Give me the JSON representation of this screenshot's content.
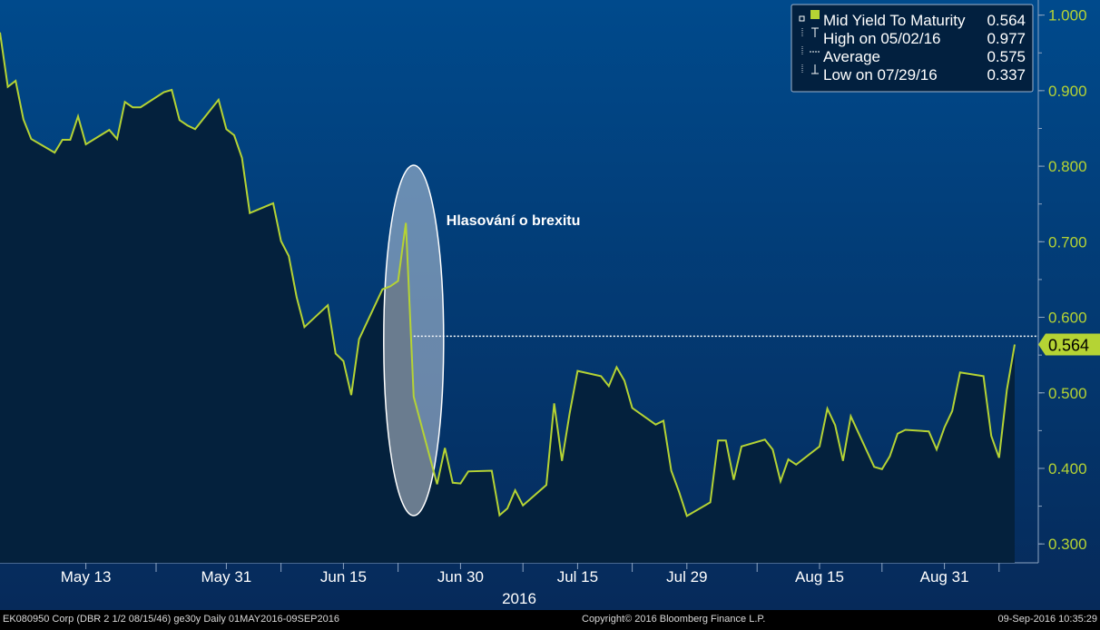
{
  "chart_data": {
    "type": "area",
    "title": "",
    "xlabel": "",
    "ylabel": "",
    "year_label": "2016",
    "x_tick_labels": [
      "May 13",
      "May 31",
      "Jun 15",
      "Jun 30",
      "Jul 15",
      "Jul 29",
      "Aug 15",
      "Aug 31"
    ],
    "y_tick_labels": [
      "1.000",
      "0.900",
      "0.800",
      "0.700",
      "0.600",
      "0.500",
      "0.400",
      "0.300"
    ],
    "ylim": [
      0.275,
      1.02
    ],
    "y_ticks": [
      1.0,
      0.9,
      0.8,
      0.7,
      0.6,
      0.5,
      0.4,
      0.3
    ],
    "grid": false,
    "legend_position": "top-right",
    "series": [
      {
        "name": "Mid Yield To Maturity",
        "color": "#b5d334",
        "x": [
          "2016-05-02",
          "2016-05-03",
          "2016-05-04",
          "2016-05-05",
          "2016-05-06",
          "2016-05-09",
          "2016-05-10",
          "2016-05-11",
          "2016-05-12",
          "2016-05-13",
          "2016-05-16",
          "2016-05-17",
          "2016-05-18",
          "2016-05-19",
          "2016-05-20",
          "2016-05-23",
          "2016-05-24",
          "2016-05-25",
          "2016-05-26",
          "2016-05-27",
          "2016-05-30",
          "2016-05-31",
          "2016-06-01",
          "2016-06-02",
          "2016-06-03",
          "2016-06-06",
          "2016-06-07",
          "2016-06-08",
          "2016-06-09",
          "2016-06-10",
          "2016-06-13",
          "2016-06-14",
          "2016-06-15",
          "2016-06-16",
          "2016-06-17",
          "2016-06-20",
          "2016-06-21",
          "2016-06-22",
          "2016-06-23",
          "2016-06-24",
          "2016-06-27",
          "2016-06-28",
          "2016-06-29",
          "2016-06-30",
          "2016-07-01",
          "2016-07-04",
          "2016-07-05",
          "2016-07-06",
          "2016-07-07",
          "2016-07-08",
          "2016-07-11",
          "2016-07-12",
          "2016-07-13",
          "2016-07-14",
          "2016-07-15",
          "2016-07-18",
          "2016-07-19",
          "2016-07-20",
          "2016-07-21",
          "2016-07-22",
          "2016-07-25",
          "2016-07-26",
          "2016-07-27",
          "2016-07-28",
          "2016-07-29",
          "2016-08-01",
          "2016-08-02",
          "2016-08-03",
          "2016-08-04",
          "2016-08-05",
          "2016-08-08",
          "2016-08-09",
          "2016-08-10",
          "2016-08-11",
          "2016-08-12",
          "2016-08-15",
          "2016-08-16",
          "2016-08-17",
          "2016-08-18",
          "2016-08-19",
          "2016-08-22",
          "2016-08-23",
          "2016-08-24",
          "2016-08-25",
          "2016-08-26",
          "2016-08-29",
          "2016-08-30",
          "2016-08-31",
          "2016-09-01",
          "2016-09-02",
          "2016-09-05",
          "2016-09-06",
          "2016-09-07",
          "2016-09-08",
          "2016-09-09"
        ],
        "y": [
          0.977,
          0.905,
          0.913,
          0.862,
          0.836,
          0.818,
          0.835,
          0.835,
          0.866,
          0.829,
          0.848,
          0.836,
          0.885,
          0.878,
          0.878,
          0.898,
          0.901,
          0.861,
          0.854,
          0.849,
          0.888,
          0.849,
          0.841,
          0.811,
          0.738,
          0.751,
          0.701,
          0.681,
          0.627,
          0.587,
          0.616,
          0.552,
          0.542,
          0.497,
          0.571,
          0.637,
          0.641,
          0.648,
          0.725,
          0.495,
          0.379,
          0.427,
          0.381,
          0.38,
          0.396,
          0.397,
          0.338,
          0.347,
          0.371,
          0.351,
          0.378,
          0.486,
          0.41,
          0.474,
          0.529,
          0.522,
          0.509,
          0.534,
          0.516,
          0.48,
          0.458,
          0.463,
          0.397,
          0.369,
          0.337,
          0.355,
          0.437,
          0.437,
          0.385,
          0.429,
          0.438,
          0.425,
          0.383,
          0.412,
          0.405,
          0.429,
          0.479,
          0.457,
          0.41,
          0.469,
          0.402,
          0.399,
          0.416,
          0.446,
          0.451,
          0.449,
          0.425,
          0.454,
          0.476,
          0.527,
          0.522,
          0.443,
          0.414,
          0.504,
          0.564
        ]
      }
    ],
    "legend": [
      {
        "marker": "square",
        "label": "Mid Yield To Maturity",
        "value": "0.564"
      },
      {
        "marker": "high",
        "label": "High on 05/02/16",
        "value": "0.977"
      },
      {
        "marker": "average",
        "label": "Average",
        "value": "0.575"
      },
      {
        "marker": "low",
        "label": "Low on 07/29/16",
        "value": "0.337"
      }
    ],
    "average_value": 0.575,
    "last_value_label": "0.564",
    "annotation": {
      "text": "Hlasování o brexitu",
      "date": "2016-06-24"
    }
  },
  "footer": {
    "left": "EK080950 Corp (DBR 2 1/2 08/15/46) ge30y  Daily 01MAY2016-09SEP2016",
    "center": "Copyright© 2016 Bloomberg Finance L.P.",
    "right": "09-Sep-2016 10:35:29"
  },
  "colors": {
    "accent": "#b5d334",
    "background_top": "#004a8c",
    "background_bottom": "#062a5a",
    "area_fill": "#04213d",
    "text": "#ffffff",
    "footer_background": "#000000"
  }
}
